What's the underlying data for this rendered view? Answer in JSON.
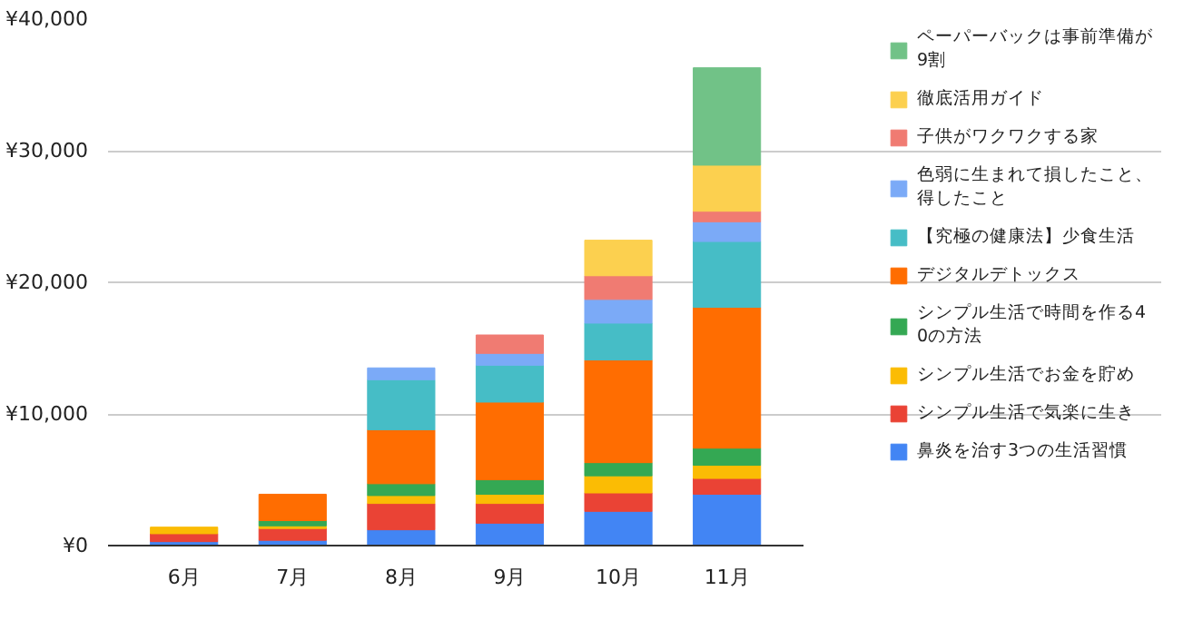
{
  "chart_data": {
    "type": "bar",
    "stacked": true,
    "categories": [
      "6月",
      "7月",
      "8月",
      "9月",
      "10月",
      "11月"
    ],
    "ylim": [
      0,
      40000
    ],
    "yticks": [
      {
        "value": 0,
        "label": "¥0"
      },
      {
        "value": 10000,
        "label": "¥10,000"
      },
      {
        "value": 20000,
        "label": "¥20,000"
      },
      {
        "value": 30000,
        "label": "¥30,000"
      },
      {
        "value": 40000,
        "label": "¥40,000"
      }
    ],
    "grid": "y",
    "legend": "right",
    "series": [
      {
        "name": "鼻炎を治す3つの生活習慣",
        "color": "#4285f4",
        "values": [
          300,
          400,
          1200,
          1700,
          2600,
          3900
        ]
      },
      {
        "name": "シンプル生活で気楽に生き",
        "color": "#ea4335",
        "values": [
          600,
          900,
          2000,
          1500,
          1400,
          1200
        ]
      },
      {
        "name": "シンプル生活でお金を貯め",
        "color": "#fbbc04",
        "values": [
          500,
          200,
          600,
          700,
          1300,
          1000
        ]
      },
      {
        "name": "シンプル生活で時間を作る40の方法",
        "color": "#34a853",
        "values": [
          null,
          400,
          900,
          1100,
          1000,
          1300
        ]
      },
      {
        "name": "デジタルデトックス",
        "color": "#ff6d01",
        "values": [
          null,
          2000,
          4100,
          5900,
          7800,
          10700
        ]
      },
      {
        "name": "【究極の健康法】少食生活",
        "color": "#46bdc6",
        "values": [
          null,
          null,
          3800,
          2800,
          2800,
          5000
        ]
      },
      {
        "name": "色弱に生まれて損したこと、得したこと",
        "color": "#7baaf7",
        "values": [
          null,
          null,
          900,
          900,
          1800,
          1500
        ]
      },
      {
        "name": "子供がワクワクする家",
        "color": "#f07b72",
        "values": [
          null,
          null,
          null,
          1400,
          1800,
          800
        ]
      },
      {
        "name": "徹底活用ガイド",
        "color": "#fcd04f",
        "values": [
          null,
          null,
          null,
          null,
          2700,
          3500
        ]
      },
      {
        "name": "ペーパーバックは事前準備が9割",
        "color": "#71c287",
        "values": [
          null,
          null,
          null,
          null,
          null,
          7400
        ]
      }
    ]
  }
}
